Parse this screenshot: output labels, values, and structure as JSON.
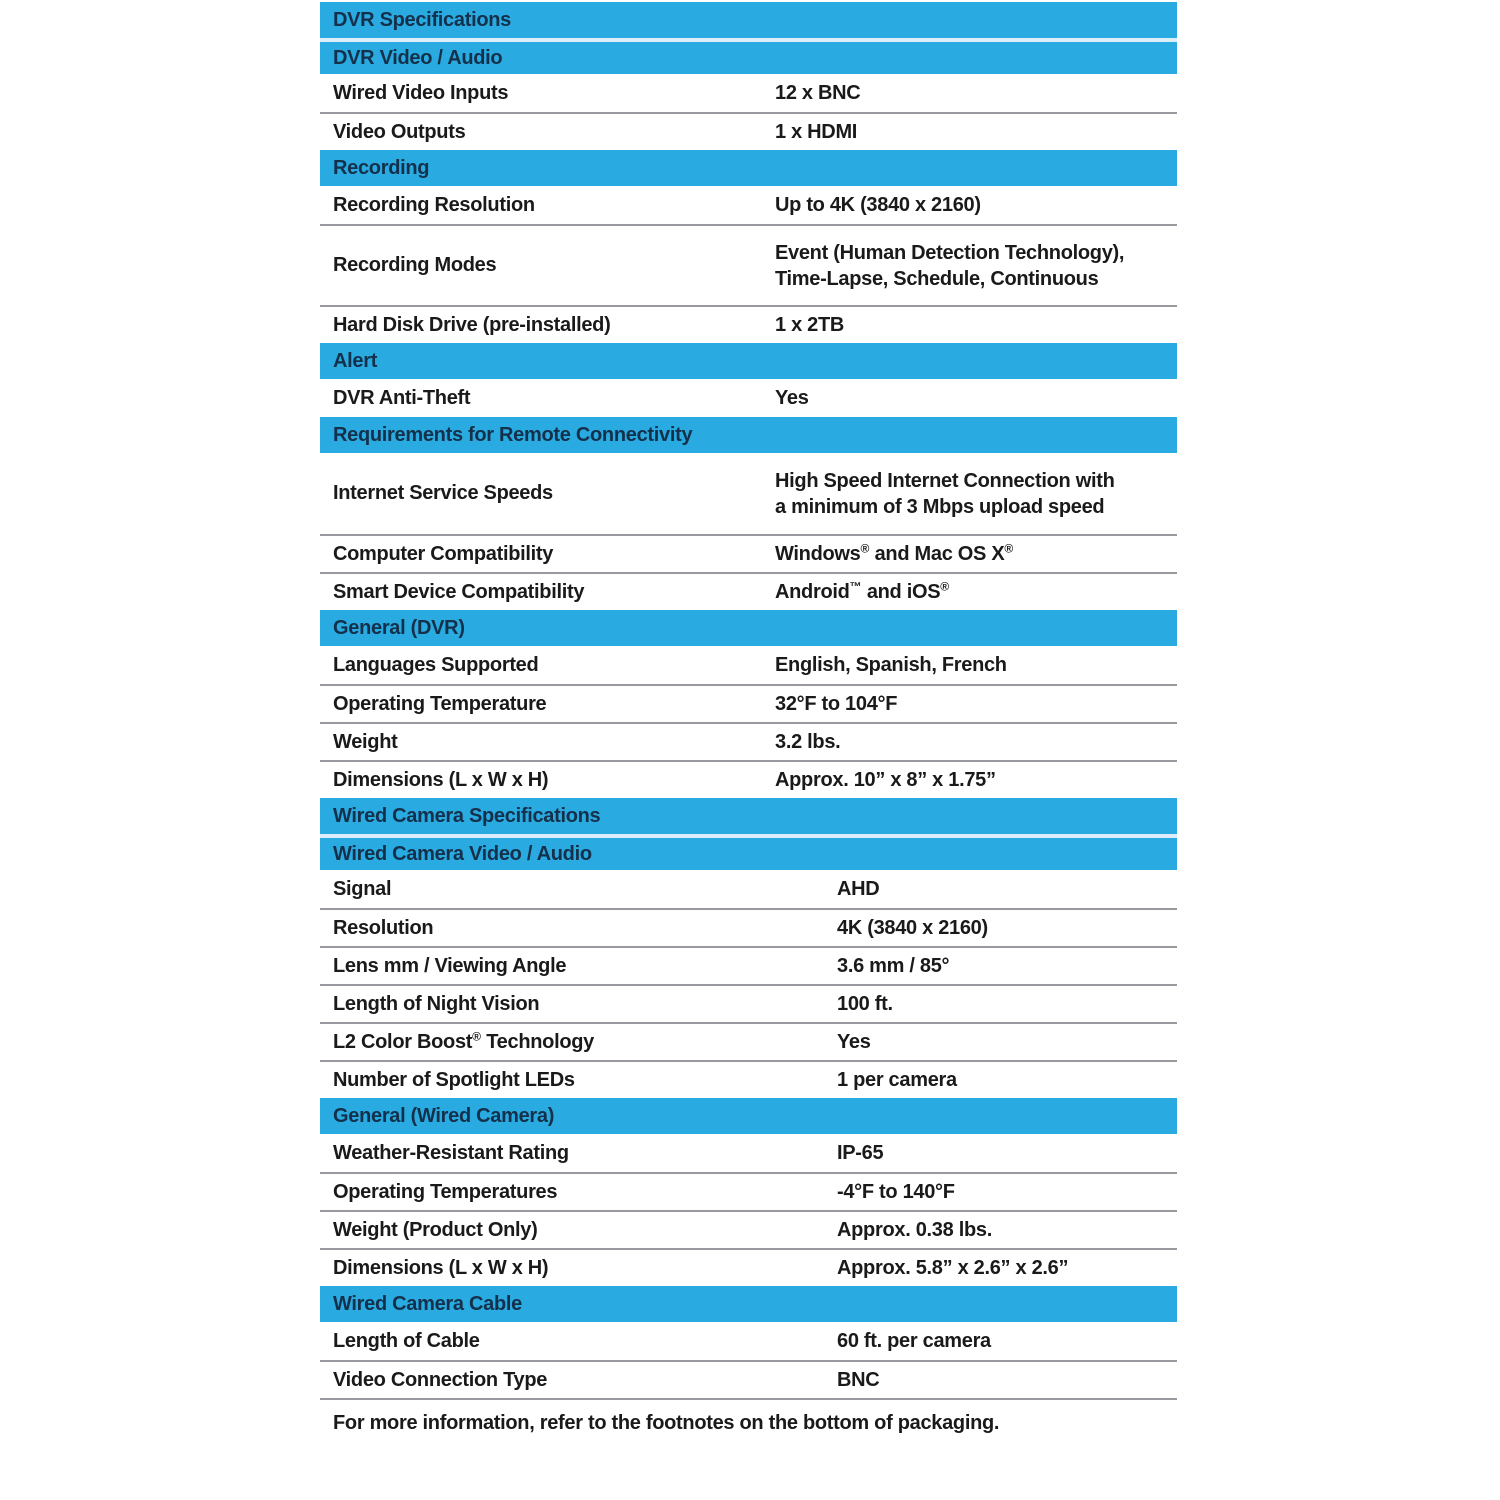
{
  "colors": {
    "section_header_bg": "#29aae1",
    "section_header_text": "#14304a",
    "row_text": "#1a1a1a",
    "divider": "#97999e"
  },
  "table": {
    "rows": [
      {
        "type": "section",
        "label": "DVR Specifications"
      },
      {
        "type": "section",
        "label": "DVR Video / Audio"
      },
      {
        "type": "spec",
        "label": "Wired Video Inputs",
        "value": "12 x BNC"
      },
      {
        "type": "spec",
        "label": "Video Outputs",
        "value": "1 x HDMI"
      },
      {
        "type": "section",
        "label": "Recording"
      },
      {
        "type": "spec",
        "label": "Recording Resolution",
        "value": "Up to 4K (3840 x 2160)"
      },
      {
        "type": "spec",
        "label": "Recording Modes",
        "value_line1": "Event (Human Detection Technology),",
        "value_line2": "Time-Lapse, Schedule, Continuous"
      },
      {
        "type": "spec",
        "label": "Hard Disk Drive (pre-installed)",
        "value": "1 x 2TB"
      },
      {
        "type": "section",
        "label": "Alert"
      },
      {
        "type": "spec",
        "label": "DVR Anti-Theft",
        "value": "Yes"
      },
      {
        "type": "section",
        "label": "Requirements for Remote Connectivity"
      },
      {
        "type": "spec",
        "label": "Internet Service Speeds",
        "value_line1": "High Speed Internet Connection with",
        "value_line2": "a minimum of 3 Mbps upload speed"
      },
      {
        "type": "spec",
        "label": "Computer Compatibility",
        "value_parts": [
          "Windows",
          "®",
          " and Mac OS X",
          "®"
        ]
      },
      {
        "type": "spec",
        "label": "Smart Device Compatibility",
        "value_parts": [
          "Android",
          "™",
          " and iOS",
          "®"
        ]
      },
      {
        "type": "section",
        "label": "General (DVR)"
      },
      {
        "type": "spec",
        "label": "Languages Supported",
        "value": "English, Spanish, French"
      },
      {
        "type": "spec",
        "label": "Operating Temperature",
        "value": "32°F to 104°F"
      },
      {
        "type": "spec",
        "label": "Weight",
        "value": "3.2 lbs."
      },
      {
        "type": "spec",
        "label": "Dimensions (L x W x H)",
        "value": "Approx. 10” x 8” x 1.75”"
      },
      {
        "type": "section",
        "label": "Wired Camera Specifications"
      },
      {
        "type": "section",
        "label": "Wired Camera Video / Audio"
      },
      {
        "type": "spec",
        "label": "Signal",
        "value": "AHD"
      },
      {
        "type": "spec",
        "label": "Resolution",
        "value": "4K (3840 x 2160)"
      },
      {
        "type": "spec",
        "label": "Lens mm / Viewing Angle",
        "value": "3.6 mm / 85°"
      },
      {
        "type": "spec",
        "label": "Length of Night Vision",
        "value": "100 ft."
      },
      {
        "type": "spec",
        "label_parts": [
          "L2 Color Boost",
          "®",
          " Technology"
        ],
        "value": "Yes"
      },
      {
        "type": "spec",
        "label": "Number of Spotlight LEDs",
        "value": "1 per camera"
      },
      {
        "type": "section",
        "label": "General (Wired Camera)"
      },
      {
        "type": "spec",
        "label": "Weather-Resistant Rating",
        "value": "IP-65"
      },
      {
        "type": "spec",
        "label": "Operating Temperatures",
        "value": "-4°F to 140°F"
      },
      {
        "type": "spec",
        "label": "Weight (Product Only)",
        "value": "Approx. 0.38 lbs."
      },
      {
        "type": "spec",
        "label": "Dimensions (L x W x H)",
        "value": "Approx. 5.8” x 2.6” x 2.6”"
      },
      {
        "type": "section",
        "label": "Wired Camera Cable"
      },
      {
        "type": "spec",
        "label": "Length of Cable",
        "value": "60 ft. per camera"
      },
      {
        "type": "spec",
        "label": "Video Connection Type",
        "value": "BNC"
      }
    ],
    "footer": "For more information, refer to the footnotes on the bottom of packaging."
  }
}
